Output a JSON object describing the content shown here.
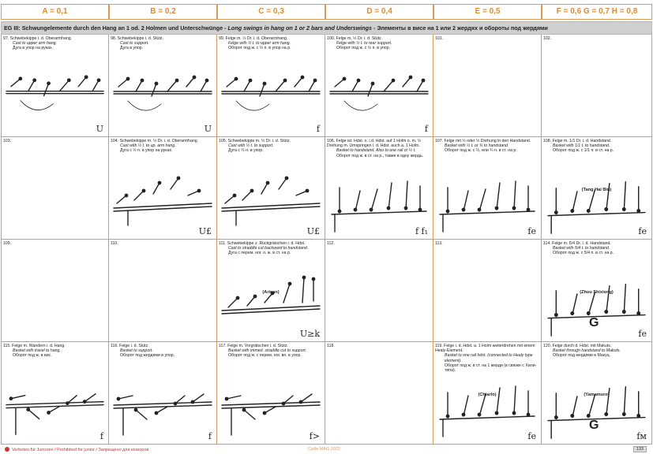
{
  "header": {
    "values": [
      "A = 0,1",
      "B = 0,2",
      "C = 0,3",
      "D = 0,4",
      "E = 0,5",
      "F = 0,6 G = 0,7 H = 0,8"
    ]
  },
  "band": {
    "de": "EG III: Schwungelemente durch den Hang an 1 od. 2 Holmen und Unterschwünge - ",
    "en": "Long swings in hang on 1 or 2 bars and Underswings",
    "ru": " - Элементы в висе на 1 или 2 жердях и обороты под жердями"
  },
  "rows": [
    [
      {
        "no": "97.",
        "de": "Schwebekippe i. d. Oberarmhang.",
        "en": "Cast to upper arm hang.",
        "ru": "Дуга в упор на руках.",
        "name": "",
        "g": "",
        "sym": "U"
      },
      {
        "no": "98.",
        "de": "Schwebekippe i. d. Stütz.",
        "en": "Cast to support.",
        "ru": "Дуга в упор.",
        "name": "",
        "g": "",
        "sym": "U"
      },
      {
        "no": "99.",
        "de": "Felge m. ½ Dr. i. d. Oberarmhang.",
        "en": "Felge with ½ t. to upper arm hang.",
        "ru": "Оборот под ж. с ½ п. в упор на р.",
        "name": "",
        "g": "",
        "sym": "f"
      },
      {
        "no": "100.",
        "de": "Felge m. ½ Dr. i. d. Stütz.",
        "en": "Felge with ½ t. to rear support.",
        "ru": "Оборот под ж. с ½ п. в упор.",
        "name": "",
        "g": "",
        "sym": "f"
      },
      {
        "no": "101.",
        "de": "",
        "en": "",
        "ru": "",
        "name": "",
        "g": "",
        "sym": ""
      },
      {
        "no": "102.",
        "de": "",
        "en": "",
        "ru": "",
        "name": "",
        "g": "",
        "sym": ""
      }
    ],
    [
      {
        "no": "103.",
        "de": "",
        "en": "",
        "ru": "",
        "name": "",
        "g": "",
        "sym": ""
      },
      {
        "no": "104.",
        "de": "Schwebekippe m. ½ Dr. i. d. Oberarmhang.",
        "en": "Cast with ½ t. to up. arm hang.",
        "ru": "Дуга с ½ п. в упор на руках.",
        "name": "",
        "g": "",
        "sym": "U£"
      },
      {
        "no": "105.",
        "de": "Schwebekippe m. ½ Dr. i. d. Stütz.",
        "en": "Cast with ½ t. to support.",
        "ru": "Дуга с ½ п. в упор.",
        "name": "",
        "g": "",
        "sym": "U£"
      },
      {
        "no": "106.",
        "de": "Felge ist. Hdst. o. i.d. Hdst. auf 1 Holm o. m. ½ Drehung m. Umspringen i. d. Hdst. auch a. 1 Holm.",
        "en": "Basket to handstand. Also to one rail or ½ t.",
        "ru": "Оборот под ж. в ст. на р., также в одну жердь.",
        "name": "",
        "g": "",
        "sym": "f f₁"
      },
      {
        "no": "107.",
        "de": "Felge mit ½ oder ½ Drehung in den Handstand.",
        "en": "Basket with ½ t. or ¾ to handstand.",
        "ru": "Оборот под ж. с ½, или ¾ п. в ст. на р.",
        "name": "",
        "g": "",
        "sym": "fe"
      },
      {
        "no": "108.",
        "de": "Felge m. 1/1 Dr. i. d. Handstand.",
        "en": "Basket with 1/1 t. to handstand.",
        "ru": "Оборот под ж. с 1/1 п. в ст. на р.",
        "name": "(Tang Hai Bin)",
        "g": "",
        "sym": "fe"
      }
    ],
    [
      {
        "no": "109.",
        "de": "",
        "en": "",
        "ru": "",
        "name": "",
        "g": "",
        "sym": ""
      },
      {
        "no": "110.",
        "de": "",
        "en": "",
        "ru": "",
        "name": "",
        "g": "",
        "sym": ""
      },
      {
        "no": "111.",
        "de": "Schwebekippe z. Rückgrätschen i. d. Hdst.",
        "en": "Cast to straddle cut backward to handstand.",
        "ru": "Дуга с перем. ног. о. ж. в ст. на р.",
        "name": "(Arican)",
        "g": "",
        "sym": "U≥k"
      },
      {
        "no": "112.",
        "de": "",
        "en": "",
        "ru": "",
        "name": "",
        "g": "",
        "sym": ""
      },
      {
        "no": "113.",
        "de": "",
        "en": "",
        "ru": "",
        "name": "",
        "g": "",
        "sym": ""
      },
      {
        "no": "114.",
        "de": "Felge m. 5/4 Dr. i. d. Handstand.",
        "en": "Basket with 5/4 t. to handstand.",
        "ru": "Оборот под ж. с 5/4 п. в ст. на р.",
        "name": "(Zhou Shixiong)",
        "g": "G",
        "sym": "fe"
      }
    ],
    [
      {
        "no": "115.",
        "de": "Felge m. Wandern i. d. Hang.",
        "en": "Basket with travel to hang.",
        "ru": "Оборот под ж. в вис.",
        "name": "",
        "g": "",
        "sym": "f"
      },
      {
        "no": "116.",
        "de": "Felge i. d. Stütz.",
        "en": "Basket to support.",
        "ru": "Оборот под жердями в упор.",
        "name": "",
        "g": "",
        "sym": "f"
      },
      {
        "no": "117.",
        "de": "Felge m. Vorgrätschen i. d. Stütz.",
        "en": "Basket with immed. straddle cut to support.",
        "ru": "Оборот под ж. с перем. ног. вп. в упор.",
        "name": "",
        "g": "",
        "sym": "f>"
      },
      {
        "no": "118.",
        "de": "",
        "en": "",
        "ru": "",
        "name": "",
        "g": "",
        "sym": ""
      },
      {
        "no": "119.",
        "de": "Felge i. d. Hdst. a. 1 Holm weiterdrehen mit einem Healy-Element.",
        "en": "Basket to one rail hdst. (connected to Healy type element).",
        "ru": "Оборот под ж. в ст. на 1 жерди (в связке с Хили-типа).",
        "name": "(Chiarlo)",
        "g": "",
        "sym": "fe"
      },
      {
        "no": "120.",
        "de": "Felge durch d. Hdst. mit Makuts.",
        "en": "Basket through handstand to Makuts.",
        "ru": "Оборот под жердями в Макуц.",
        "name": "(Yamamuro)",
        "g": "G",
        "sym": "fм"
      }
    ]
  ],
  "footer": {
    "left": "Verboten für Junioren / Prohibited for junior / Запрещено для юниоров",
    "center": "Code MAG 2022",
    "page": "133"
  }
}
